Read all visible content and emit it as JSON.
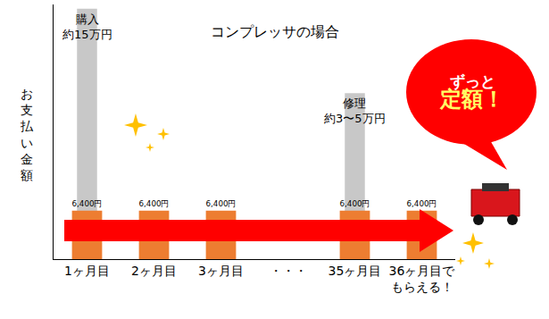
{
  "chart_data": {
    "type": "bar",
    "title": "コンプレッサの場合",
    "y_label": "お支払い金額",
    "categories": [
      "1ヶ月目",
      "2ヶ月目",
      "3ヶ月目",
      "・・・",
      "35ヶ月目",
      "36ヶ月目で\nもらえる！"
    ],
    "log": "y",
    "ylim": [
      3000,
      160000
    ],
    "yticks": [],
    "tick_labels": "x",
    "grid": false,
    "series": [
      {
        "color": "#c8c8c8",
        "values": [
          150000,
          null,
          null,
          null,
          40000,
          null
        ]
      },
      {
        "color": "#ed7d31",
        "values": [
          6400,
          6400,
          6400,
          null,
          6400,
          6400
        ],
        "value_labels": [
          "6,400円",
          "6,400円",
          "6,400円",
          null,
          "6,400円",
          "6,400円"
        ],
        "data_labels": true
      }
    ],
    "annotations": [
      {
        "category": "1ヶ月目",
        "value": 150000,
        "text": "購入\n約15万円"
      },
      {
        "category": "35ヶ月目",
        "value": 40000,
        "text": "修理\n約3〜5万円"
      }
    ],
    "callout": {
      "text": "ずっと\n定額！",
      "color": "#ff0000"
    }
  }
}
